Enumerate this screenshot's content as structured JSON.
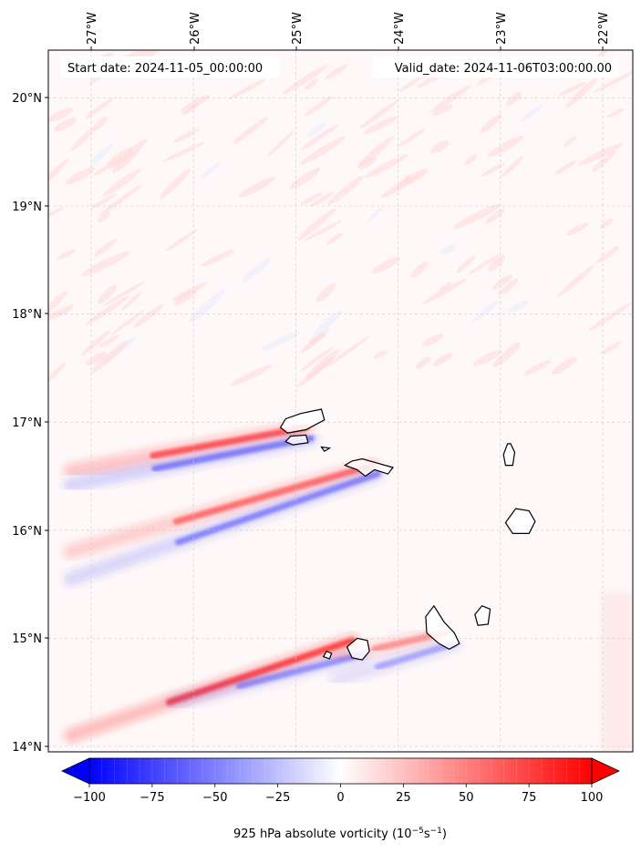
{
  "map": {
    "start_label": "Start date: 2024-11-05_00:00:00",
    "valid_label": "Valid_date: 2024-11-06T03:00:00.00",
    "lon_ticks": [
      "27°W",
      "26°W",
      "25°W",
      "24°W",
      "23°W",
      "22°W"
    ],
    "lat_ticks": [
      "20°N",
      "19°N",
      "18°N",
      "17°N",
      "16°N",
      "15°N",
      "14°N"
    ],
    "lon_range": [
      -27.4,
      -21.7
    ],
    "lat_range": [
      13.95,
      20.45
    ],
    "islands": [
      "Santo Antão",
      "São Vicente",
      "Santa Luzia",
      "São Nicolau",
      "Sal",
      "Boa Vista",
      "Fogo",
      "Brava",
      "Santiago",
      "Maio"
    ]
  },
  "colorbar": {
    "ticks": [
      "−100",
      "−75",
      "−50",
      "−25",
      "0",
      "25",
      "50",
      "75",
      "100"
    ],
    "tick_values": [
      -100,
      -75,
      -50,
      -25,
      0,
      25,
      50,
      75,
      100
    ],
    "range": [
      -100,
      100
    ],
    "colormap": "bwr",
    "colors": {
      "neg": "#0000ff",
      "mid": "#ffffff",
      "pos": "#ff0000"
    },
    "extend": "both"
  },
  "caption": {
    "main": "925 hPa absolute vorticity (10",
    "exp1": "−5",
    "mid": "s",
    "exp2": "−1",
    "end": ")"
  },
  "field_features": [
    {
      "name": "wake-santo-antao-pos",
      "sign": "positive",
      "from": [
        -24.9,
        16.95
      ],
      "to": [
        -27.2,
        16.55
      ],
      "strength": 0.65
    },
    {
      "name": "wake-santo-antao-neg",
      "sign": "negative",
      "from": [
        -24.85,
        16.85
      ],
      "to": [
        -27.2,
        16.42
      ],
      "strength": 0.55
    },
    {
      "name": "wake-sao-nicolau-pos",
      "sign": "positive",
      "from": [
        -24.25,
        16.6
      ],
      "to": [
        -27.2,
        15.8
      ],
      "strength": 0.55
    },
    {
      "name": "wake-sao-nicolau-neg",
      "sign": "negative",
      "from": [
        -24.2,
        16.52
      ],
      "to": [
        -27.2,
        15.55
      ],
      "strength": 0.5
    },
    {
      "name": "wake-fogo-pos",
      "sign": "positive",
      "from": [
        -24.45,
        14.98
      ],
      "to": [
        -27.2,
        14.1
      ],
      "strength": 0.75
    },
    {
      "name": "wake-fogo-neg",
      "sign": "negative",
      "from": [
        -24.35,
        14.85
      ],
      "to": [
        -26.2,
        14.4
      ],
      "strength": 0.45
    },
    {
      "name": "wake-santiago-pos",
      "sign": "positive",
      "from": [
        -23.55,
        15.05
      ],
      "to": [
        -24.6,
        14.82
      ],
      "strength": 0.4
    },
    {
      "name": "wake-santiago-neg",
      "sign": "negative",
      "from": [
        -23.45,
        14.95
      ],
      "to": [
        -24.6,
        14.62
      ],
      "strength": 0.35
    }
  ]
}
